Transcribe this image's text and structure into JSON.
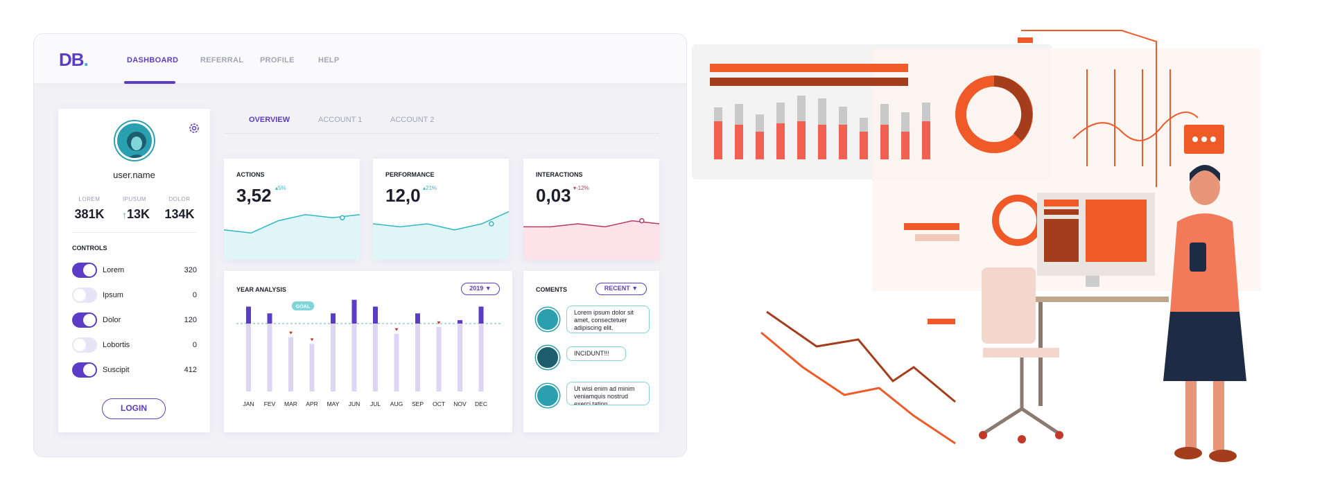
{
  "app": {
    "logo_main": "DB",
    "logo_dot": "."
  },
  "nav": {
    "items": [
      {
        "label": "DASHBOARD"
      },
      {
        "label": "REFERRAL"
      },
      {
        "label": "PROFILE"
      },
      {
        "label": "HELP"
      }
    ]
  },
  "profile": {
    "username": "user.name",
    "stats": [
      {
        "label": "LOREM",
        "value": "381K"
      },
      {
        "label": "IPUSUM",
        "value": "13K"
      },
      {
        "label": "DOLOR",
        "value": "134K"
      }
    ],
    "controls_title": "CONTROLS",
    "controls": [
      {
        "label": "Lorem",
        "value": "320",
        "on": true
      },
      {
        "label": "Ipsum",
        "value": "0",
        "on": false
      },
      {
        "label": "Dolor",
        "value": "120",
        "on": true
      },
      {
        "label": "Lobortis",
        "value": "0",
        "on": false
      },
      {
        "label": "Suscipit",
        "value": "412",
        "on": true
      }
    ],
    "login_label": "LOGIN"
  },
  "tabs": [
    {
      "label": "OVERVIEW"
    },
    {
      "label": "ACCOUNT 1"
    },
    {
      "label": "ACCOUNT 2"
    }
  ],
  "kpis": [
    {
      "title": "ACTIONS",
      "value": "3,52",
      "delta": "5%",
      "delta_dir": "up",
      "color": "#2fb7c7",
      "fill": "#dff5f7",
      "series": [
        3,
        2,
        6,
        8,
        7,
        8
      ]
    },
    {
      "title": "PERFORMANCE",
      "value": "12,0",
      "delta": "21%",
      "delta_dir": "up",
      "color": "#2fb7c7",
      "fill": "#dff5f7",
      "series": [
        5,
        4,
        5,
        3,
        5,
        9
      ]
    },
    {
      "title": "INTERACTIONS",
      "value": "0,03",
      "delta": "-12%",
      "delta_dir": "down",
      "color": "#b23a62",
      "fill": "#fde3e9",
      "series": [
        4,
        4,
        5,
        4,
        6,
        5
      ]
    }
  ],
  "year_analysis": {
    "title": "YEAR ANALYSIS",
    "year_select": "2019",
    "goal_label": "GOAL",
    "chart_data": {
      "type": "bar",
      "categories": [
        "JAN",
        "FEV",
        "MAR",
        "APR",
        "MAY",
        "JUN",
        "JUL",
        "AUG",
        "SEP",
        "OCT",
        "NOV",
        "DEC"
      ],
      "goal": 100,
      "values": [
        125,
        115,
        80,
        70,
        115,
        135,
        125,
        85,
        115,
        95,
        105,
        125
      ]
    }
  },
  "comments": {
    "title": "COMENTS",
    "filter": "RECENT",
    "items": [
      {
        "text": "Lorem ipsum dolor sit amet, consectetuer adipiscing elit."
      },
      {
        "text": "INCIDUNT!!!"
      },
      {
        "text": "Ut wisi enim ad minim veniamquis nostrud exerci tation ullamcorper"
      }
    ]
  },
  "colors": {
    "accent": "#5b3cc4",
    "teal": "#2fb7c7",
    "illustration": "#ef5a28"
  }
}
